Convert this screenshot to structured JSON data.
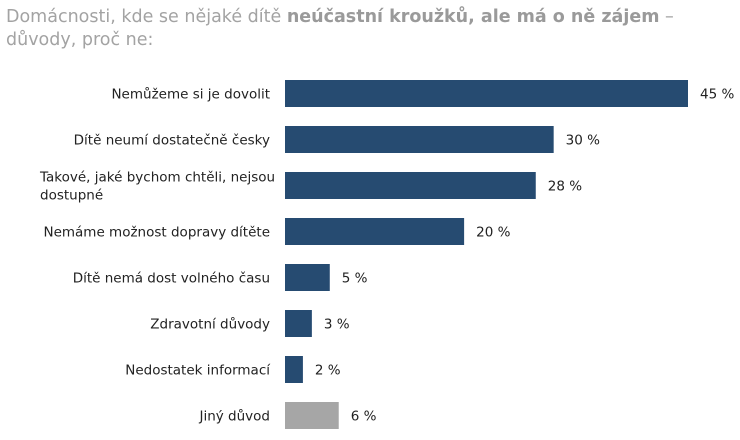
{
  "title": {
    "part1": "Domácnosti, kde se nějaké dítě ",
    "bold": "neúčastní kroužků, ale má o ně zájem",
    "part2": " – důvody, proč ne:"
  },
  "chart_data": {
    "type": "bar",
    "orientation": "horizontal",
    "categories": [
      "Nemůžeme si je dovolit",
      "Dítě neumí dostatečně česky",
      "Takové, jaké bychom chtěli, nejsou dostupné",
      "Nemáme možnost dopravy dítěte",
      "Dítě nemá dost volného času",
      "Zdravotní důvody",
      "Nedostatek informací",
      "Jiný důvod"
    ],
    "values": [
      45,
      30,
      28,
      20,
      5,
      3,
      2,
      6
    ],
    "value_labels": [
      "45 %",
      "30 %",
      "28 %",
      "20 %",
      "5 %",
      "3 %",
      "2 %",
      "6 %"
    ],
    "bar_colors": [
      "#264b71",
      "#264b71",
      "#264b71",
      "#264b71",
      "#264b71",
      "#264b71",
      "#264b71",
      "#a6a6a6"
    ],
    "xlim": [
      0,
      45
    ],
    "grid": false,
    "legend": "none"
  }
}
